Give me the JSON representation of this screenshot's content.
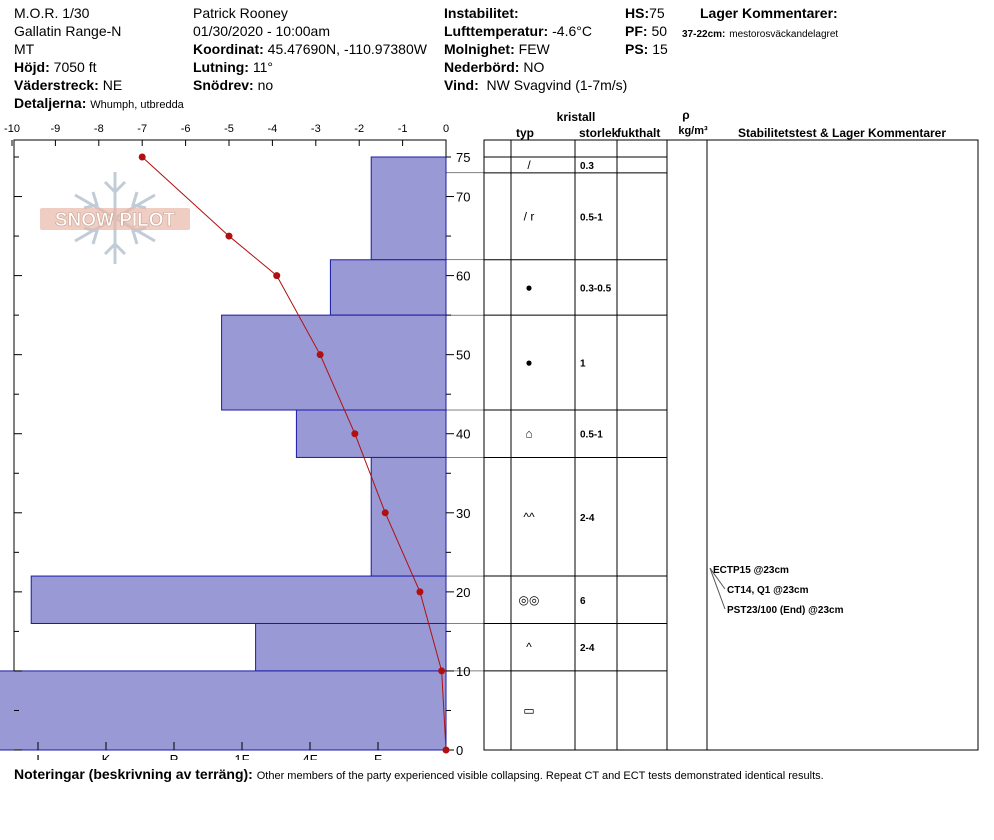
{
  "header": {
    "title": "M.O.R. 1/30",
    "range": "Gallatin Range-N",
    "state": "MT",
    "elevation_label": "Höjd:",
    "elevation": "7050 ft",
    "aspect_label": "Väderstreck:",
    "aspect": "NE",
    "details_label": "Detaljerna:",
    "details": "Whumph, utbredda",
    "observer": "Patrick Rooney",
    "datetime": "01/30/2020 - 10:00am",
    "coord_label": "Koordinat:",
    "coord": "45.47690N, -110.97380W",
    "slope_label": "Lutning:",
    "slope": "11°",
    "drift_label": "Snödrev:",
    "drift": "no",
    "instability_label": "Instabilitet:",
    "airtemp_label": "Lufttemperatur:",
    "airtemp": "-4.6°C",
    "sky_label": "Molnighet:",
    "sky": "FEW",
    "precip_label": "Nederbörd:",
    "precip": "NO",
    "wind_label": "Vind:",
    "wind": "NW Svagvind (1-7m/s)",
    "hs_label": "HS:",
    "hs": "75",
    "pf_label": "PF:",
    "pf": "50",
    "ps_label": "PS:",
    "ps": "15",
    "layer_comments_title": "Lager Kommentarer:",
    "layer_comment_range": "37-22cm:",
    "layer_comment_text": "mestorosväckandelagret"
  },
  "notes": {
    "label": "Noteringar (beskrivning av terräng):",
    "text": "Other members of the party experienced visible collapsing. Repeat CT and ECT tests demonstrated identical results."
  },
  "logo_text": "SNOW PILOT",
  "table_headers": {
    "typ": "typ",
    "kristall": "kristall",
    "storlek": "storlek",
    "fukthalt": "fukthalt",
    "rho": "ρ",
    "rho_unit": "kg/m³",
    "stab": "Stabilitetstest & Lager Kommentarer"
  },
  "chart_data": {
    "type": "snow_profile",
    "temp_axis_ticks": [
      "-10",
      "-9",
      "-8",
      "-7",
      "-6",
      "-5",
      "-4",
      "-3",
      "-2",
      "-1",
      "0"
    ],
    "height_axis_ticks": [
      "0",
      "10",
      "20",
      "30",
      "40",
      "50",
      "60",
      "70",
      "75"
    ],
    "hardness_axis_ticks": [
      "I",
      "K",
      "P",
      "1F",
      "4F",
      "F"
    ],
    "temp_range": [
      -10,
      0
    ],
    "height_range": [
      0,
      75
    ],
    "temperature_profile": [
      {
        "height": 75,
        "temp": -7.0
      },
      {
        "height": 65,
        "temp": -5.0
      },
      {
        "height": 60,
        "temp": -3.9
      },
      {
        "height": 50,
        "temp": -2.9
      },
      {
        "height": 40,
        "temp": -2.1
      },
      {
        "height": 30,
        "temp": -1.4
      },
      {
        "height": 20,
        "temp": -0.6
      },
      {
        "height": 10,
        "temp": -0.1
      },
      {
        "height": 0,
        "temp": 0.0
      }
    ],
    "hardness_profile": [
      {
        "top": 75,
        "bottom": 62,
        "hardness": 1.1
      },
      {
        "top": 62,
        "bottom": 55,
        "hardness": 1.7
      },
      {
        "top": 55,
        "bottom": 43,
        "hardness": 3.3
      },
      {
        "top": 43,
        "bottom": 37,
        "hardness": 2.2
      },
      {
        "top": 37,
        "bottom": 22,
        "hardness": 1.1
      },
      {
        "top": 22,
        "bottom": 16,
        "hardness": 6.1
      },
      {
        "top": 16,
        "bottom": 10,
        "hardness": 2.8
      },
      {
        "top": 10,
        "bottom": 0,
        "hardness": 6.6
      }
    ],
    "layers": [
      {
        "top": 75,
        "bottom": 73,
        "type_icon": "/",
        "size": "0.3"
      },
      {
        "top": 73,
        "bottom": 62,
        "type_icon": "/ r",
        "size": "0.5-1"
      },
      {
        "top": 62,
        "bottom": 55,
        "type_icon": "●",
        "size": "0.3-0.5"
      },
      {
        "top": 55,
        "bottom": 43,
        "type_icon": "●",
        "size": "1"
      },
      {
        "top": 43,
        "bottom": 37,
        "type_icon": "⌂",
        "size": "0.5-1"
      },
      {
        "top": 37,
        "bottom": 22,
        "type_icon": "^^",
        "size": "2-4"
      },
      {
        "top": 22,
        "bottom": 16,
        "type_icon": "◎◎",
        "size": "6"
      },
      {
        "top": 16,
        "bottom": 10,
        "type_icon": "^",
        "size": "2-4"
      },
      {
        "top": 10,
        "bottom": 0,
        "type_icon": "▭",
        "size": ""
      }
    ],
    "stability_tests": [
      {
        "label": "ECTP15 @23cm",
        "height": 23
      },
      {
        "label": "CT14, Q1 @23cm",
        "height": 23
      },
      {
        "label": "PST23/100 (End) @23cm",
        "height": 23
      }
    ]
  }
}
